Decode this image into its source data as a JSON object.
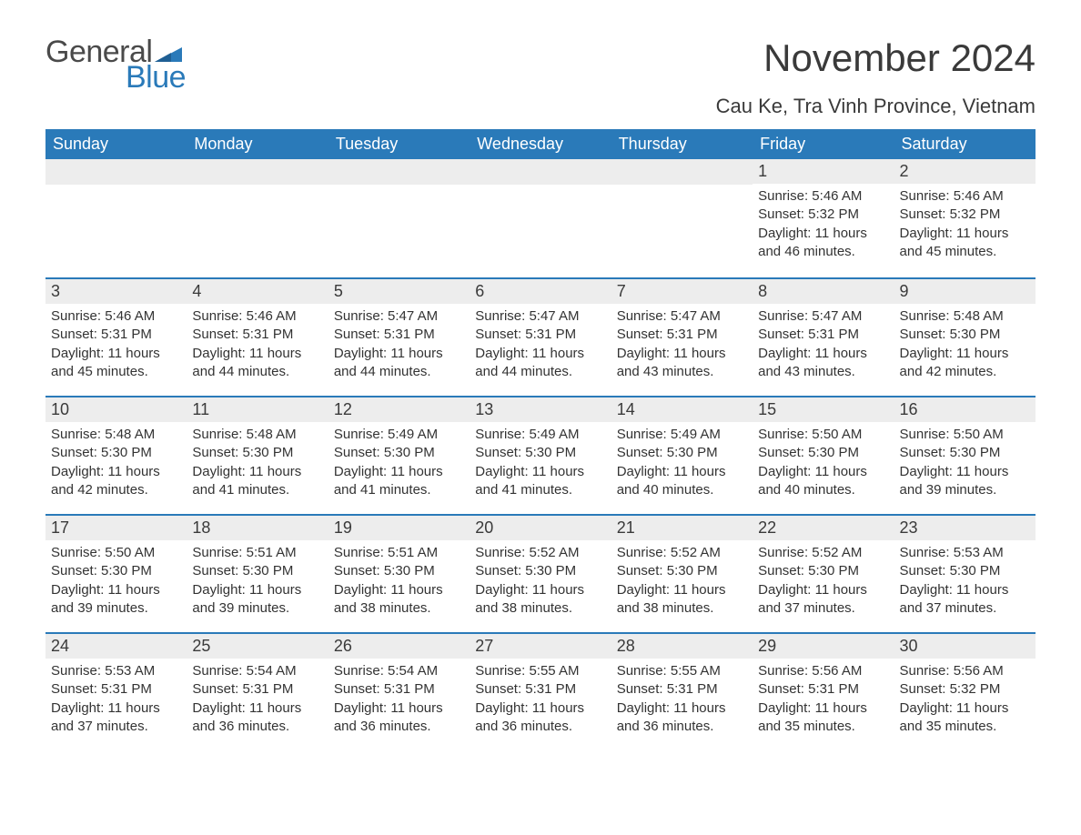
{
  "logo": {
    "text1": "General",
    "text2": "Blue",
    "flag_color": "#2a7ab9"
  },
  "header": {
    "month_title": "November 2024",
    "location": "Cau Ke, Tra Vinh Province, Vietnam"
  },
  "colors": {
    "header_bg": "#2a7ab9",
    "header_text": "#ffffff",
    "daynum_bg": "#ededed",
    "daynum_border": "#2a7ab9",
    "body_text": "#333333",
    "title_text": "#3a3a3a",
    "background": "#ffffff"
  },
  "typography": {
    "month_title_pt": 42,
    "location_pt": 22,
    "weekday_pt": 18,
    "daynum_pt": 18,
    "dayinfo_pt": 15,
    "logo_pt": 34
  },
  "weekdays": [
    "Sunday",
    "Monday",
    "Tuesday",
    "Wednesday",
    "Thursday",
    "Friday",
    "Saturday"
  ],
  "weeks": [
    [
      {
        "empty": true
      },
      {
        "empty": true
      },
      {
        "empty": true
      },
      {
        "empty": true
      },
      {
        "empty": true
      },
      {
        "day": "1",
        "sunrise": "5:46 AM",
        "sunset": "5:32 PM",
        "daylight": "11 hours and 46 minutes."
      },
      {
        "day": "2",
        "sunrise": "5:46 AM",
        "sunset": "5:32 PM",
        "daylight": "11 hours and 45 minutes."
      }
    ],
    [
      {
        "day": "3",
        "sunrise": "5:46 AM",
        "sunset": "5:31 PM",
        "daylight": "11 hours and 45 minutes."
      },
      {
        "day": "4",
        "sunrise": "5:46 AM",
        "sunset": "5:31 PM",
        "daylight": "11 hours and 44 minutes."
      },
      {
        "day": "5",
        "sunrise": "5:47 AM",
        "sunset": "5:31 PM",
        "daylight": "11 hours and 44 minutes."
      },
      {
        "day": "6",
        "sunrise": "5:47 AM",
        "sunset": "5:31 PM",
        "daylight": "11 hours and 44 minutes."
      },
      {
        "day": "7",
        "sunrise": "5:47 AM",
        "sunset": "5:31 PM",
        "daylight": "11 hours and 43 minutes."
      },
      {
        "day": "8",
        "sunrise": "5:47 AM",
        "sunset": "5:31 PM",
        "daylight": "11 hours and 43 minutes."
      },
      {
        "day": "9",
        "sunrise": "5:48 AM",
        "sunset": "5:30 PM",
        "daylight": "11 hours and 42 minutes."
      }
    ],
    [
      {
        "day": "10",
        "sunrise": "5:48 AM",
        "sunset": "5:30 PM",
        "daylight": "11 hours and 42 minutes."
      },
      {
        "day": "11",
        "sunrise": "5:48 AM",
        "sunset": "5:30 PM",
        "daylight": "11 hours and 41 minutes."
      },
      {
        "day": "12",
        "sunrise": "5:49 AM",
        "sunset": "5:30 PM",
        "daylight": "11 hours and 41 minutes."
      },
      {
        "day": "13",
        "sunrise": "5:49 AM",
        "sunset": "5:30 PM",
        "daylight": "11 hours and 41 minutes."
      },
      {
        "day": "14",
        "sunrise": "5:49 AM",
        "sunset": "5:30 PM",
        "daylight": "11 hours and 40 minutes."
      },
      {
        "day": "15",
        "sunrise": "5:50 AM",
        "sunset": "5:30 PM",
        "daylight": "11 hours and 40 minutes."
      },
      {
        "day": "16",
        "sunrise": "5:50 AM",
        "sunset": "5:30 PM",
        "daylight": "11 hours and 39 minutes."
      }
    ],
    [
      {
        "day": "17",
        "sunrise": "5:50 AM",
        "sunset": "5:30 PM",
        "daylight": "11 hours and 39 minutes."
      },
      {
        "day": "18",
        "sunrise": "5:51 AM",
        "sunset": "5:30 PM",
        "daylight": "11 hours and 39 minutes."
      },
      {
        "day": "19",
        "sunrise": "5:51 AM",
        "sunset": "5:30 PM",
        "daylight": "11 hours and 38 minutes."
      },
      {
        "day": "20",
        "sunrise": "5:52 AM",
        "sunset": "5:30 PM",
        "daylight": "11 hours and 38 minutes."
      },
      {
        "day": "21",
        "sunrise": "5:52 AM",
        "sunset": "5:30 PM",
        "daylight": "11 hours and 38 minutes."
      },
      {
        "day": "22",
        "sunrise": "5:52 AM",
        "sunset": "5:30 PM",
        "daylight": "11 hours and 37 minutes."
      },
      {
        "day": "23",
        "sunrise": "5:53 AM",
        "sunset": "5:30 PM",
        "daylight": "11 hours and 37 minutes."
      }
    ],
    [
      {
        "day": "24",
        "sunrise": "5:53 AM",
        "sunset": "5:31 PM",
        "daylight": "11 hours and 37 minutes."
      },
      {
        "day": "25",
        "sunrise": "5:54 AM",
        "sunset": "5:31 PM",
        "daylight": "11 hours and 36 minutes."
      },
      {
        "day": "26",
        "sunrise": "5:54 AM",
        "sunset": "5:31 PM",
        "daylight": "11 hours and 36 minutes."
      },
      {
        "day": "27",
        "sunrise": "5:55 AM",
        "sunset": "5:31 PM",
        "daylight": "11 hours and 36 minutes."
      },
      {
        "day": "28",
        "sunrise": "5:55 AM",
        "sunset": "5:31 PM",
        "daylight": "11 hours and 36 minutes."
      },
      {
        "day": "29",
        "sunrise": "5:56 AM",
        "sunset": "5:31 PM",
        "daylight": "11 hours and 35 minutes."
      },
      {
        "day": "30",
        "sunrise": "5:56 AM",
        "sunset": "5:32 PM",
        "daylight": "11 hours and 35 minutes."
      }
    ]
  ],
  "labels": {
    "sunrise": "Sunrise:",
    "sunset": "Sunset:",
    "daylight": "Daylight:"
  }
}
